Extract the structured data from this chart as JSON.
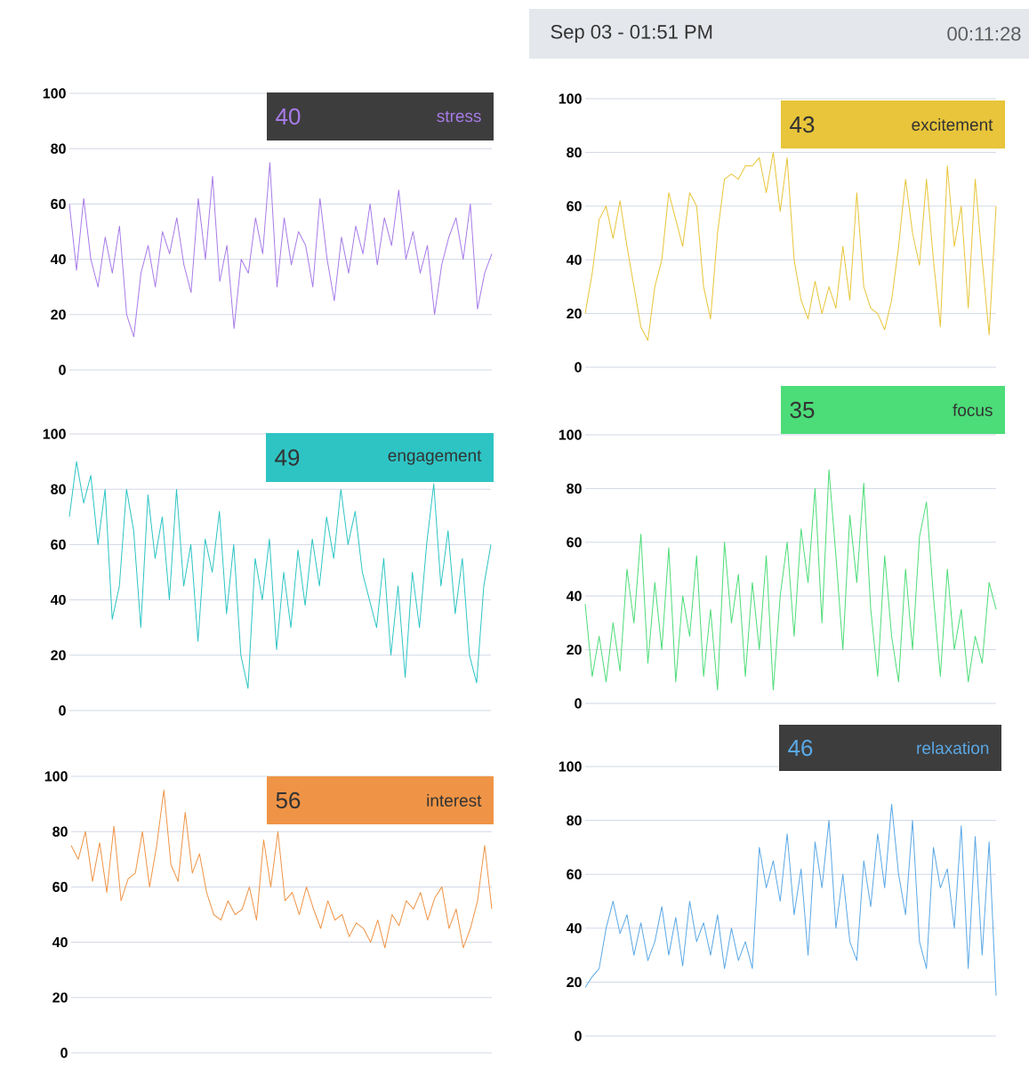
{
  "chart_data": [
    {
      "type": "other",
      "annotations": [
        "Sep 03 - 01:51 PM",
        "00:11:28"
      ]
    },
    {
      "type": "line",
      "title": "stress",
      "annotations": [
        "40"
      ],
      "ylim": [
        0,
        100
      ],
      "yticks": [
        0,
        20,
        40,
        60,
        80,
        100
      ],
      "grid": "y",
      "tick_labels": "y",
      "categories": [
        null,
        null,
        null,
        null,
        null,
        null,
        null,
        null,
        null,
        null,
        null,
        null,
        null,
        null,
        null,
        null,
        null,
        null,
        null,
        null,
        null,
        null,
        null,
        null,
        null,
        null,
        null,
        null,
        null,
        null,
        null,
        null,
        null,
        null,
        null,
        null,
        null,
        null,
        null,
        null,
        null,
        null,
        null,
        null,
        null,
        null,
        null,
        null,
        null,
        null,
        null,
        null,
        null,
        null,
        null,
        null,
        null,
        null,
        null,
        null
      ],
      "series": [
        {
          "color": "#a77be8",
          "values": [
            60,
            36,
            62,
            40,
            30,
            48,
            35,
            52,
            20,
            12,
            35,
            45,
            30,
            50,
            42,
            55,
            38,
            28,
            62,
            40,
            70,
            32,
            45,
            15,
            40,
            35,
            55,
            42,
            75,
            30,
            55,
            38,
            50,
            45,
            30,
            62,
            40,
            25,
            48,
            35,
            52,
            42,
            60,
            38,
            55,
            45,
            65,
            40,
            50,
            35,
            45,
            20,
            38,
            48,
            55,
            40,
            60,
            22,
            35,
            42
          ]
        }
      ]
    },
    {
      "type": "line",
      "title": "excitement",
      "annotations": [
        "43"
      ],
      "ylim": [
        0,
        100
      ],
      "yticks": [
        0,
        20,
        40,
        60,
        80,
        100
      ],
      "grid": "y",
      "tick_labels": "y",
      "categories": [
        null,
        null,
        null,
        null,
        null,
        null,
        null,
        null,
        null,
        null,
        null,
        null,
        null,
        null,
        null,
        null,
        null,
        null,
        null,
        null,
        null,
        null,
        null,
        null,
        null,
        null,
        null,
        null,
        null,
        null,
        null,
        null,
        null,
        null,
        null,
        null,
        null,
        null,
        null,
        null,
        null,
        null,
        null,
        null,
        null,
        null,
        null,
        null,
        null,
        null,
        null,
        null,
        null,
        null,
        null,
        null,
        null,
        null,
        null,
        null
      ],
      "series": [
        {
          "color": "#e8c53a",
          "values": [
            20,
            35,
            55,
            60,
            48,
            62,
            45,
            30,
            15,
            10,
            30,
            40,
            65,
            55,
            45,
            65,
            60,
            30,
            18,
            50,
            70,
            72,
            70,
            75,
            75,
            78,
            65,
            80,
            58,
            78,
            40,
            25,
            18,
            32,
            20,
            30,
            22,
            45,
            25,
            65,
            30,
            22,
            20,
            14,
            25,
            45,
            70,
            50,
            38,
            70,
            40,
            15,
            75,
            45,
            60,
            22,
            70,
            40,
            12,
            60
          ]
        }
      ]
    },
    {
      "type": "line",
      "title": "engagement",
      "annotations": [
        "49"
      ],
      "ylim": [
        0,
        100
      ],
      "yticks": [
        0,
        20,
        40,
        60,
        80,
        100
      ],
      "grid": "y",
      "tick_labels": "y",
      "categories": [
        null,
        null,
        null,
        null,
        null,
        null,
        null,
        null,
        null,
        null,
        null,
        null,
        null,
        null,
        null,
        null,
        null,
        null,
        null,
        null,
        null,
        null,
        null,
        null,
        null,
        null,
        null,
        null,
        null,
        null,
        null,
        null,
        null,
        null,
        null,
        null,
        null,
        null,
        null,
        null,
        null,
        null,
        null,
        null,
        null,
        null,
        null,
        null,
        null,
        null,
        null,
        null,
        null,
        null,
        null,
        null,
        null,
        null,
        null,
        null
      ],
      "series": [
        {
          "color": "#2ec4c4",
          "values": [
            70,
            90,
            75,
            85,
            60,
            80,
            33,
            45,
            80,
            65,
            30,
            78,
            55,
            70,
            40,
            80,
            45,
            60,
            25,
            62,
            50,
            72,
            35,
            60,
            20,
            8,
            55,
            40,
            62,
            22,
            50,
            30,
            58,
            38,
            62,
            45,
            70,
            55,
            80,
            60,
            72,
            50,
            40,
            30,
            55,
            20,
            45,
            12,
            50,
            30,
            60,
            82,
            45,
            65,
            35,
            55,
            20,
            10,
            45,
            60
          ]
        }
      ]
    },
    {
      "type": "line",
      "title": "focus",
      "annotations": [
        "35"
      ],
      "ylim": [
        0,
        100
      ],
      "yticks": [
        0,
        20,
        40,
        60,
        80,
        100
      ],
      "grid": "y",
      "tick_labels": "y",
      "categories": [
        null,
        null,
        null,
        null,
        null,
        null,
        null,
        null,
        null,
        null,
        null,
        null,
        null,
        null,
        null,
        null,
        null,
        null,
        null,
        null,
        null,
        null,
        null,
        null,
        null,
        null,
        null,
        null,
        null,
        null,
        null,
        null,
        null,
        null,
        null,
        null,
        null,
        null,
        null,
        null,
        null,
        null,
        null,
        null,
        null,
        null,
        null,
        null,
        null,
        null,
        null,
        null,
        null,
        null,
        null,
        null,
        null,
        null,
        null,
        null
      ],
      "series": [
        {
          "color": "#4cdc78",
          "values": [
            37,
            10,
            25,
            8,
            30,
            12,
            50,
            30,
            63,
            15,
            45,
            20,
            58,
            8,
            40,
            25,
            55,
            10,
            35,
            5,
            60,
            30,
            48,
            10,
            45,
            20,
            55,
            5,
            40,
            60,
            25,
            65,
            45,
            80,
            30,
            87,
            55,
            20,
            70,
            45,
            82,
            35,
            10,
            55,
            25,
            8,
            50,
            20,
            62,
            75,
            40,
            10,
            50,
            20,
            35,
            8,
            25,
            15,
            45,
            35
          ]
        }
      ]
    },
    {
      "type": "line",
      "title": "interest",
      "annotations": [
        "56"
      ],
      "ylim": [
        0,
        100
      ],
      "yticks": [
        0,
        20,
        40,
        60,
        80,
        100
      ],
      "grid": "y",
      "tick_labels": "y",
      "categories": [
        null,
        null,
        null,
        null,
        null,
        null,
        null,
        null,
        null,
        null,
        null,
        null,
        null,
        null,
        null,
        null,
        null,
        null,
        null,
        null,
        null,
        null,
        null,
        null,
        null,
        null,
        null,
        null,
        null,
        null,
        null,
        null,
        null,
        null,
        null,
        null,
        null,
        null,
        null,
        null,
        null,
        null,
        null,
        null,
        null,
        null,
        null,
        null,
        null,
        null,
        null,
        null,
        null,
        null,
        null,
        null,
        null,
        null,
        null,
        null
      ],
      "series": [
        {
          "color": "#ef9446",
          "values": [
            75,
            70,
            80,
            62,
            76,
            58,
            82,
            55,
            63,
            65,
            80,
            60,
            75,
            95,
            68,
            62,
            87,
            65,
            72,
            58,
            50,
            48,
            55,
            50,
            52,
            60,
            48,
            77,
            60,
            80,
            55,
            58,
            50,
            60,
            52,
            45,
            55,
            48,
            50,
            42,
            47,
            45,
            40,
            48,
            38,
            50,
            46,
            55,
            52,
            58,
            48,
            56,
            60,
            45,
            52,
            38,
            45,
            55,
            75,
            52
          ]
        }
      ]
    },
    {
      "type": "line",
      "title": "relaxation",
      "annotations": [
        "46"
      ],
      "ylim": [
        0,
        100
      ],
      "yticks": [
        0,
        20,
        40,
        60,
        80,
        100
      ],
      "grid": "y",
      "tick_labels": "y",
      "categories": [
        null,
        null,
        null,
        null,
        null,
        null,
        null,
        null,
        null,
        null,
        null,
        null,
        null,
        null,
        null,
        null,
        null,
        null,
        null,
        null,
        null,
        null,
        null,
        null,
        null,
        null,
        null,
        null,
        null,
        null,
        null,
        null,
        null,
        null,
        null,
        null,
        null,
        null,
        null,
        null,
        null,
        null,
        null,
        null,
        null,
        null,
        null,
        null,
        null,
        null,
        null,
        null,
        null,
        null,
        null,
        null,
        null,
        null,
        null,
        null
      ],
      "series": [
        {
          "color": "#5aa8e6",
          "values": [
            18,
            22,
            25,
            40,
            50,
            38,
            45,
            30,
            42,
            28,
            35,
            48,
            30,
            44,
            26,
            50,
            35,
            42,
            30,
            45,
            25,
            40,
            28,
            35,
            25,
            70,
            55,
            65,
            50,
            75,
            45,
            62,
            30,
            72,
            55,
            80,
            40,
            60,
            35,
            28,
            65,
            48,
            75,
            55,
            86,
            60,
            45,
            80,
            35,
            25,
            70,
            55,
            62,
            40,
            78,
            25,
            74,
            30,
            72,
            15
          ]
        }
      ]
    }
  ]
}
